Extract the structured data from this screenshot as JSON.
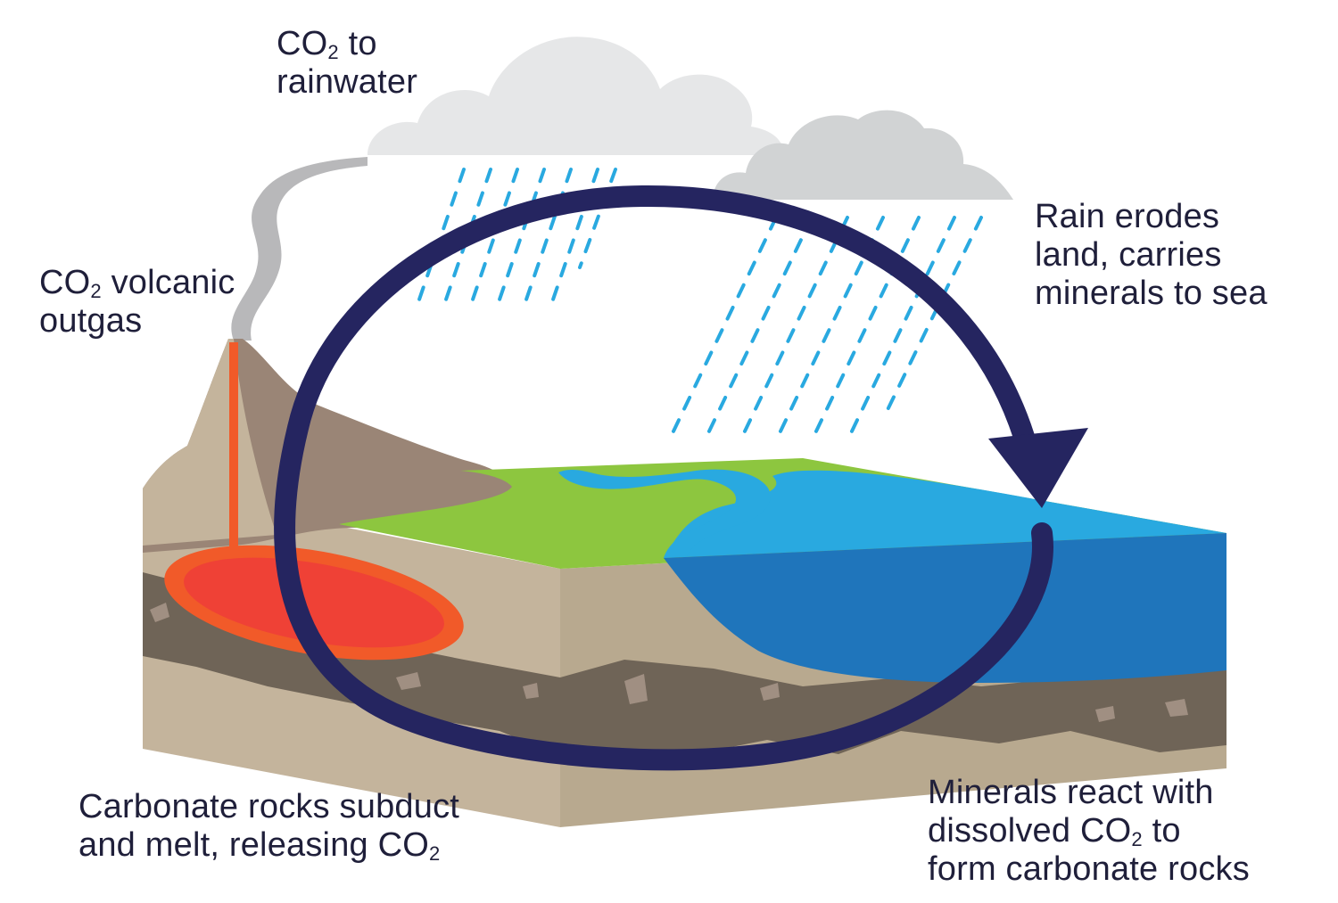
{
  "labels": {
    "rainwater": {
      "line1_pre": "CO",
      "line1_sub": "2",
      "line1_post": " to",
      "line2": "rainwater"
    },
    "volcanic": {
      "line1_pre": "CO",
      "line1_sub": "2",
      "line1_post": " volcanic",
      "line2": "outgas"
    },
    "rain_erodes": {
      "line1": "Rain erodes",
      "line2": "land, carries",
      "line3": "minerals to sea"
    },
    "subduct": {
      "line1": "Carbonate rocks subduct",
      "line2_pre": "and melt, releasing CO",
      "line2_sub": "2"
    },
    "minerals_react": {
      "line1": "Minerals react with",
      "line2_pre": "dissolved CO",
      "line2_sub": "2",
      "line2_post": " to",
      "line3": "form carbonate rocks"
    }
  },
  "colors": {
    "cycle_arrow": "#252560",
    "grass": "#8dc63f",
    "river": "#29a9e0",
    "sea_surface": "#29a9e0",
    "sea_body": "#1f75bb",
    "ground": "#c4b49c",
    "rock_layer": "#6f6457",
    "mountain": "#9a8576",
    "magma_outer": "#f15a29",
    "magma_inner": "#ef4136",
    "cloud_light": "#e6e7e8",
    "cloud_dark": "#d1d3d4",
    "smoke": "#b8b8ba",
    "rain": "#29a9e0",
    "text": "#1f1f3a"
  },
  "icons": [
    "cloud-icon",
    "volcano-icon",
    "rain-icon",
    "cycle-arrow-icon"
  ]
}
